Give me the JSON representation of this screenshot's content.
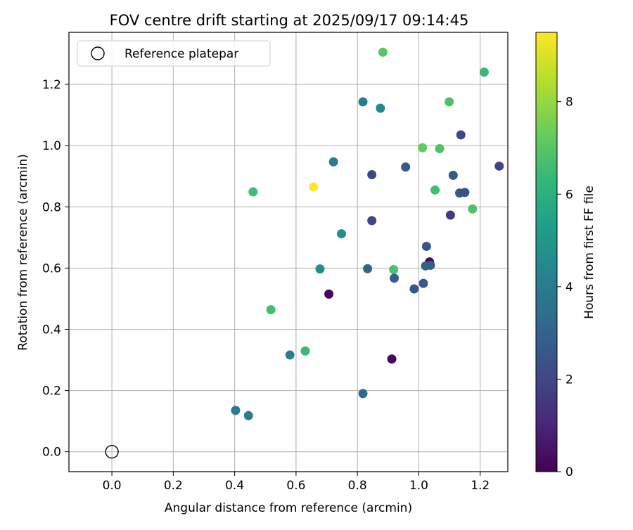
{
  "chart_data": {
    "type": "scatter",
    "title": "FOV centre drift starting at 2025/09/17 09:14:45",
    "xlabel": "Angular distance from reference (arcmin)",
    "ylabel": "Rotation from reference (arcmin)",
    "xlim": [
      -0.14,
      1.29
    ],
    "ylim": [
      -0.065,
      1.37
    ],
    "xticks": [
      0.0,
      0.2,
      0.4,
      0.6,
      0.8,
      1.0,
      1.2
    ],
    "xtick_labels": [
      "0.0",
      "0.2",
      "0.4",
      "0.6",
      "0.8",
      "1.0",
      "1.2"
    ],
    "yticks": [
      0.0,
      0.2,
      0.4,
      0.6,
      0.8,
      1.0,
      1.2
    ],
    "ytick_labels": [
      "0.0",
      "0.2",
      "0.4",
      "0.6",
      "0.8",
      "1.0",
      "1.2"
    ],
    "grid": true,
    "legend": {
      "position": "top-left",
      "entries": [
        "Reference platepar"
      ]
    },
    "reference_point": {
      "x": 0.0,
      "y": 0.0,
      "label": "Reference platepar"
    },
    "colorbar": {
      "label": "Hours from first FF file",
      "colormap": "viridis",
      "range": [
        0,
        9.5
      ],
      "ticks": [
        0,
        2,
        4,
        6,
        8
      ],
      "tick_labels": [
        "0",
        "2",
        "4",
        "6",
        "8"
      ]
    },
    "points": [
      {
        "x": 0.883,
        "y": 1.305,
        "hours": 7.0
      },
      {
        "x": 1.213,
        "y": 1.24,
        "hours": 6.4
      },
      {
        "x": 0.818,
        "y": 1.143,
        "hours": 4.0
      },
      {
        "x": 0.875,
        "y": 1.122,
        "hours": 4.4
      },
      {
        "x": 1.099,
        "y": 1.143,
        "hours": 6.8
      },
      {
        "x": 1.137,
        "y": 1.035,
        "hours": 2.0
      },
      {
        "x": 1.012,
        "y": 0.993,
        "hours": 7.2
      },
      {
        "x": 1.068,
        "y": 0.99,
        "hours": 6.8
      },
      {
        "x": 0.722,
        "y": 0.947,
        "hours": 4.0
      },
      {
        "x": 0.957,
        "y": 0.93,
        "hours": 2.6
      },
      {
        "x": 1.262,
        "y": 0.933,
        "hours": 2.0
      },
      {
        "x": 0.847,
        "y": 0.905,
        "hours": 2.0
      },
      {
        "x": 1.112,
        "y": 0.903,
        "hours": 2.6
      },
      {
        "x": 0.46,
        "y": 0.849,
        "hours": 6.6
      },
      {
        "x": 0.657,
        "y": 0.865,
        "hours": 9.6
      },
      {
        "x": 1.053,
        "y": 0.855,
        "hours": 6.6
      },
      {
        "x": 1.133,
        "y": 0.845,
        "hours": 2.6
      },
      {
        "x": 1.15,
        "y": 0.847,
        "hours": 2.4
      },
      {
        "x": 1.175,
        "y": 0.793,
        "hours": 6.8
      },
      {
        "x": 1.103,
        "y": 0.773,
        "hours": 1.6
      },
      {
        "x": 0.847,
        "y": 0.755,
        "hours": 2.0
      },
      {
        "x": 0.748,
        "y": 0.712,
        "hours": 4.6
      },
      {
        "x": 1.025,
        "y": 0.671,
        "hours": 2.4
      },
      {
        "x": 1.035,
        "y": 0.62,
        "hours": 0.2
      },
      {
        "x": 1.022,
        "y": 0.607,
        "hours": 2.8
      },
      {
        "x": 1.038,
        "y": 0.609,
        "hours": 2.8
      },
      {
        "x": 0.678,
        "y": 0.597,
        "hours": 4.6
      },
      {
        "x": 0.833,
        "y": 0.598,
        "hours": 3.0
      },
      {
        "x": 0.918,
        "y": 0.595,
        "hours": 6.8
      },
      {
        "x": 0.92,
        "y": 0.567,
        "hours": 2.8
      },
      {
        "x": 0.985,
        "y": 0.532,
        "hours": 2.6
      },
      {
        "x": 1.015,
        "y": 0.55,
        "hours": 2.6
      },
      {
        "x": 0.707,
        "y": 0.515,
        "hours": 0.2
      },
      {
        "x": 0.518,
        "y": 0.464,
        "hours": 6.6
      },
      {
        "x": 0.63,
        "y": 0.329,
        "hours": 6.4
      },
      {
        "x": 0.58,
        "y": 0.316,
        "hours": 4.0
      },
      {
        "x": 0.912,
        "y": 0.303,
        "hours": 0.2
      },
      {
        "x": 0.818,
        "y": 0.19,
        "hours": 3.2
      },
      {
        "x": 0.403,
        "y": 0.135,
        "hours": 4.0
      },
      {
        "x": 0.445,
        "y": 0.118,
        "hours": 4.0
      }
    ]
  }
}
